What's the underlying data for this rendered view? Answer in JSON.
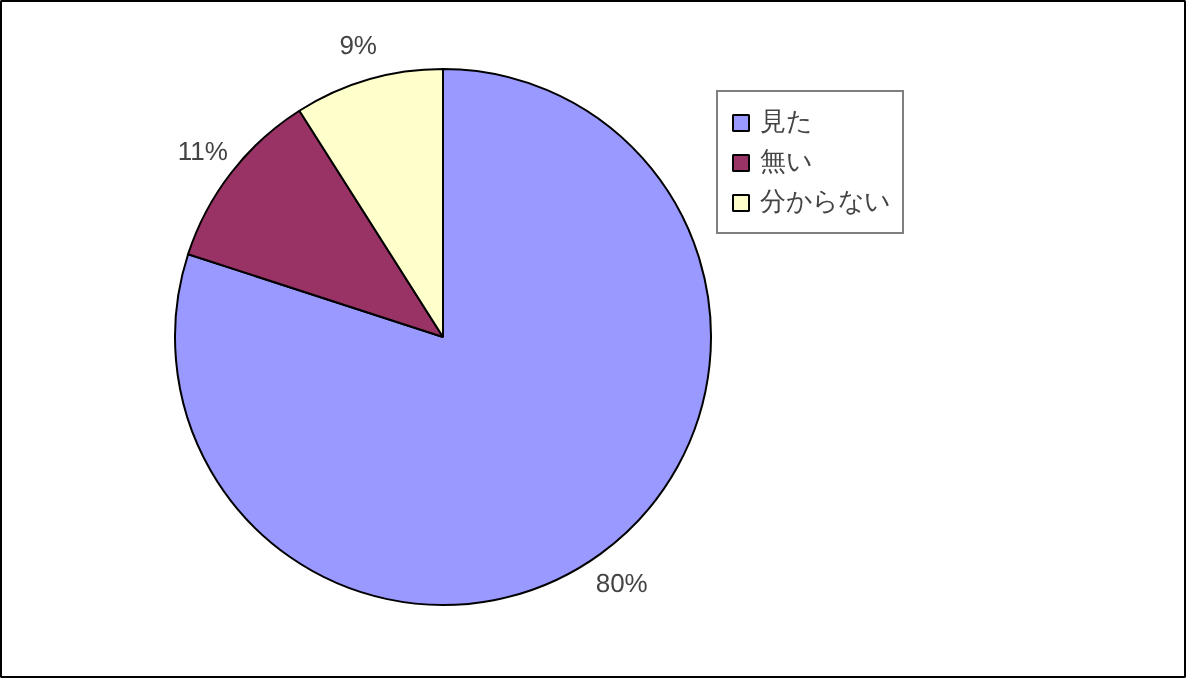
{
  "chart_data": {
    "type": "pie",
    "categories": [
      "見た",
      "無い",
      "分からない"
    ],
    "values": [
      80,
      11,
      9
    ],
    "colors": [
      "#9999ff",
      "#993366",
      "#ffffcc"
    ],
    "value_labels": [
      "80%",
      "11%",
      "9%"
    ],
    "legend": "right"
  }
}
